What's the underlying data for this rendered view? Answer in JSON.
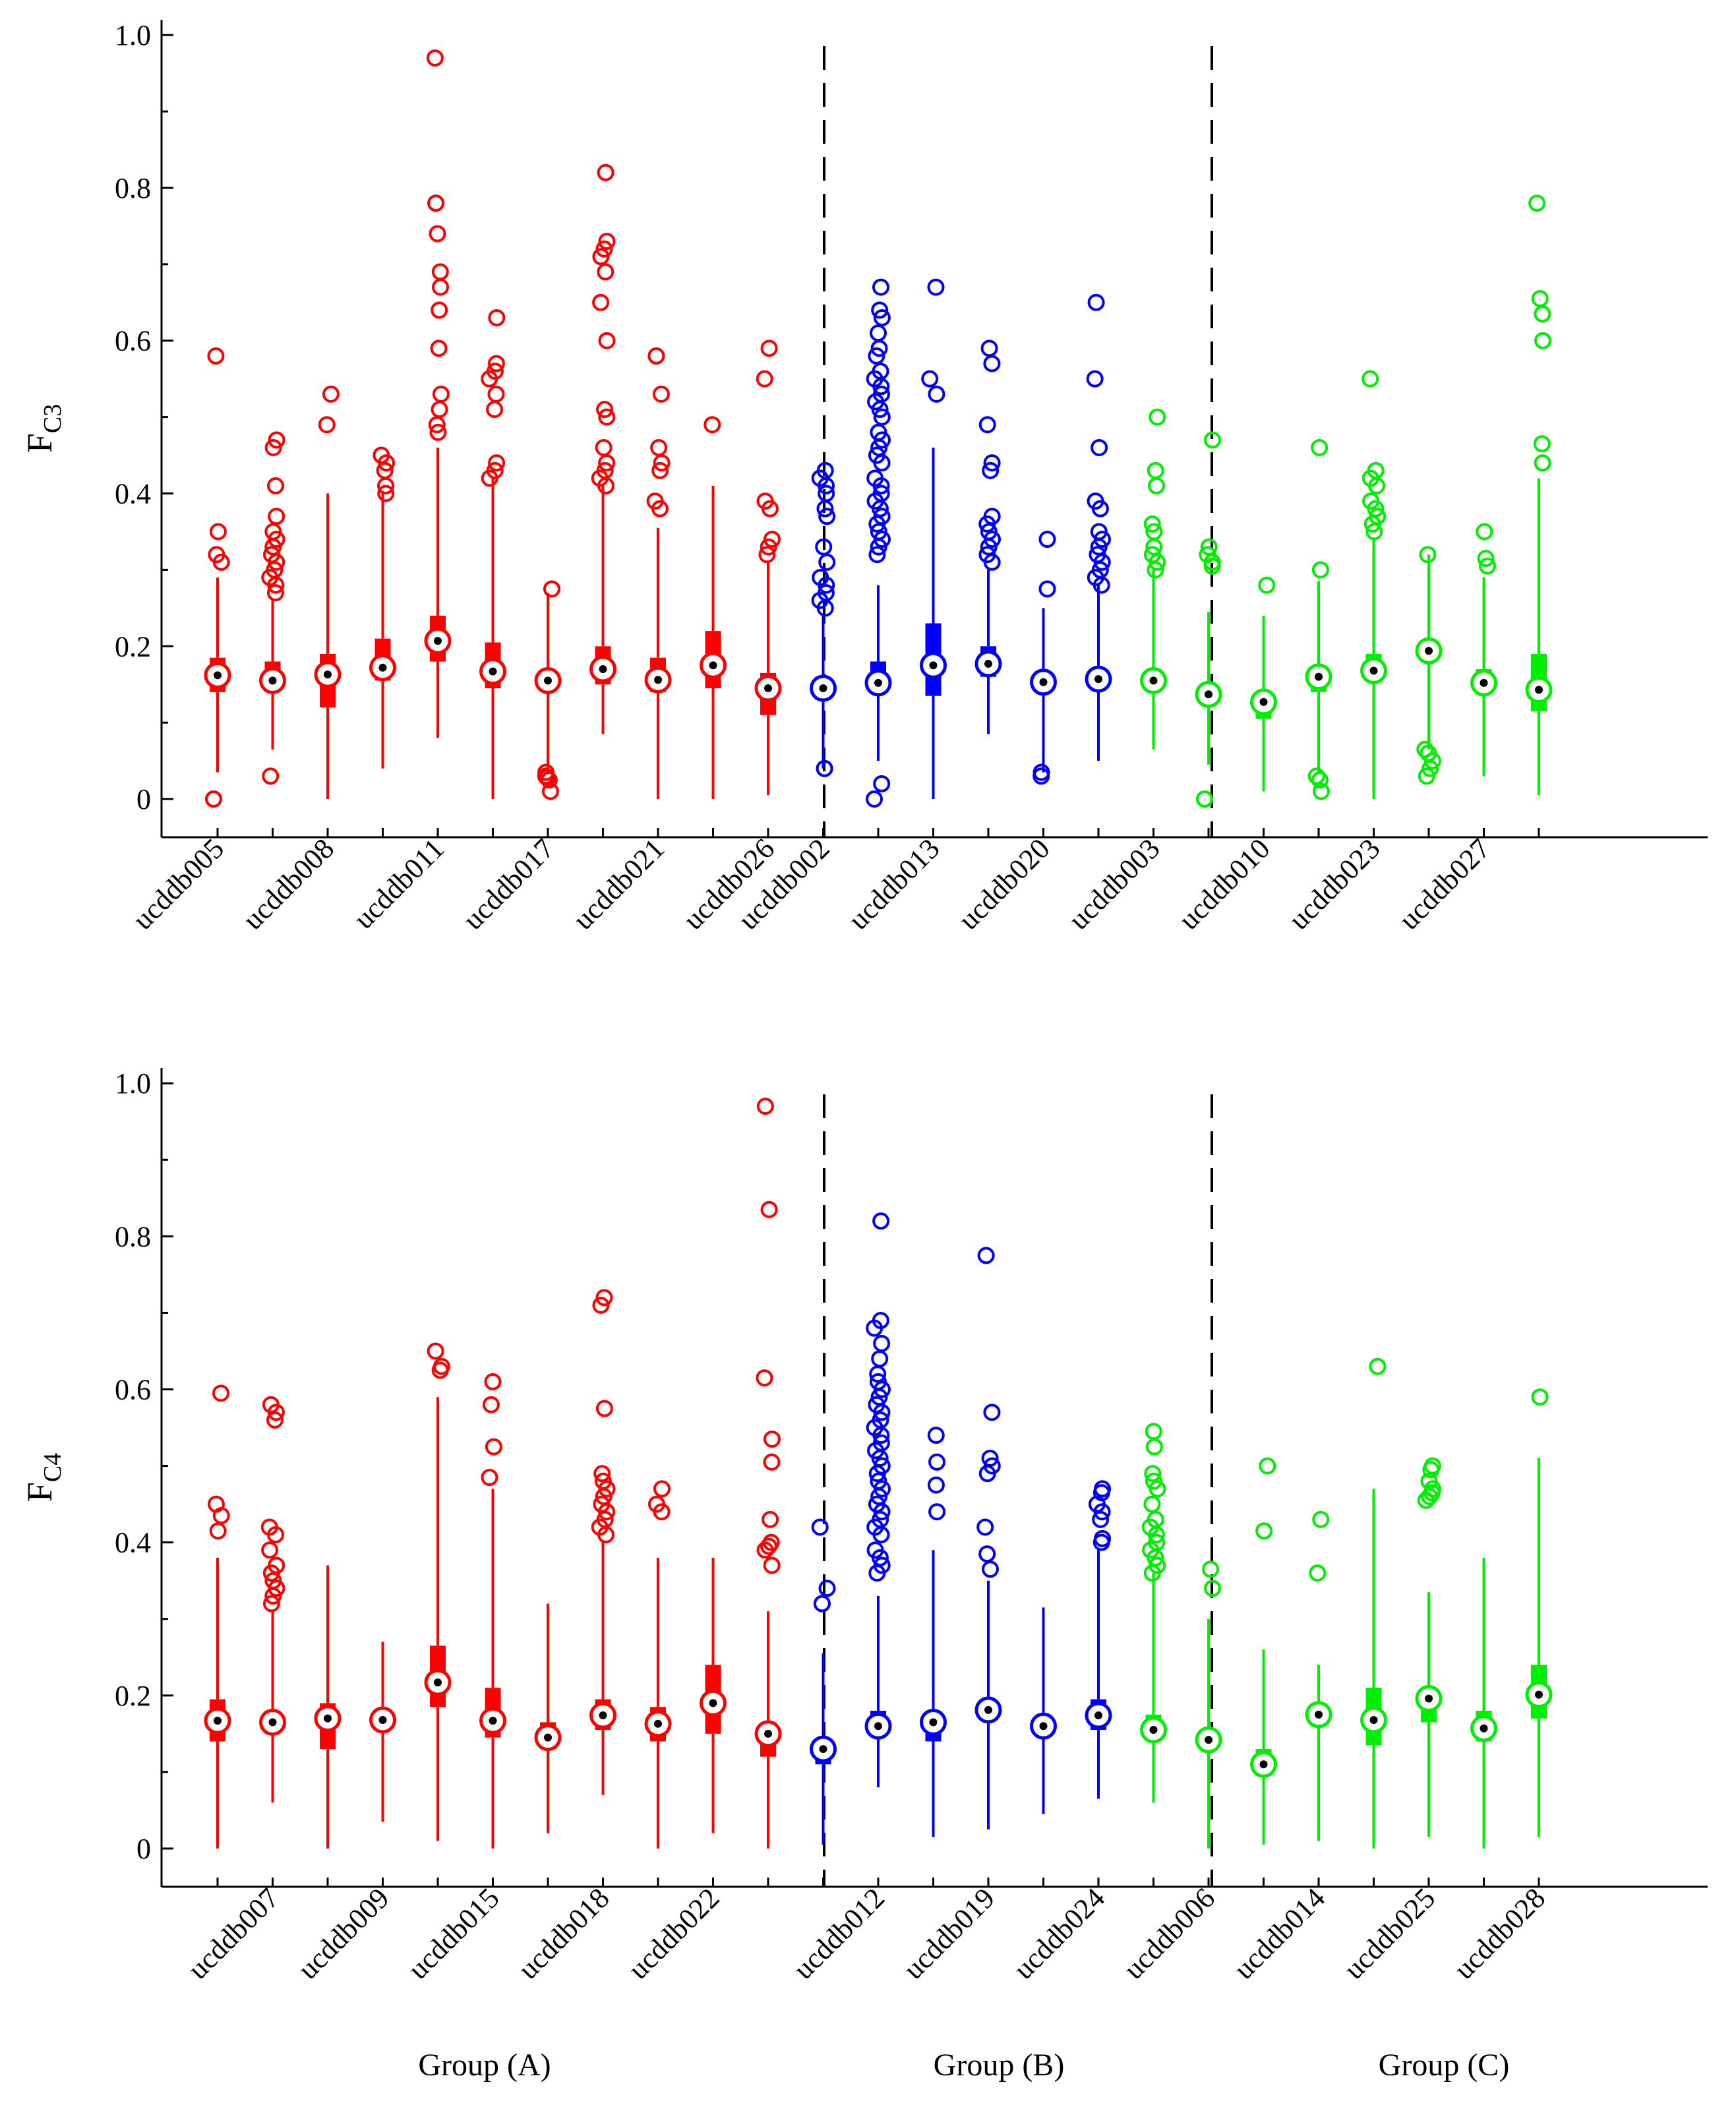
{
  "colors": {
    "A": "#ff0000",
    "B": "#0000ff",
    "C": "#00ee00"
  },
  "group_labels": [
    "Group (A)",
    "Group (B)",
    "Group (C)"
  ],
  "chart_data": [
    {
      "type": "boxplot",
      "ylabel_main": "F",
      "ylabel_sub": "C3",
      "ylim": [
        -0.05,
        1.02
      ],
      "yticks": [
        0,
        0.2,
        0.4,
        0.6,
        0.8,
        1.0
      ],
      "ytick_labels": [
        "0",
        "0.2",
        "0.4",
        "0.6",
        "0.8",
        "1.0"
      ],
      "separators_after": [
        11,
        20
      ],
      "series": [
        {
          "name": "ucddb005",
          "group": "A",
          "median": 0.162,
          "q1": 0.14,
          "q3": 0.185,
          "wlo": 0.035,
          "whi": 0.29,
          "outliers": [
            0.58,
            0.35,
            0.32,
            0.31,
            0.0,
            0.0
          ]
        },
        {
          "name": "",
          "group": "A",
          "median": 0.155,
          "q1": 0.14,
          "q3": 0.18,
          "wlo": 0.065,
          "whi": 0.26,
          "outliers": [
            0.47,
            0.46,
            0.41,
            0.37,
            0.35,
            0.34,
            0.33,
            0.32,
            0.31,
            0.3,
            0.29,
            0.28,
            0.27,
            0.03
          ]
        },
        {
          "name": "ucddb008",
          "group": "A",
          "median": 0.163,
          "q1": 0.12,
          "q3": 0.19,
          "wlo": 0.0,
          "whi": 0.4,
          "outliers": [
            0.53,
            0.49
          ]
        },
        {
          "name": "",
          "group": "A",
          "median": 0.172,
          "q1": 0.155,
          "q3": 0.21,
          "wlo": 0.04,
          "whi": 0.4,
          "outliers": [
            0.45,
            0.44,
            0.43,
            0.41,
            0.4
          ]
        },
        {
          "name": "ucddb011",
          "group": "A",
          "median": 0.207,
          "q1": 0.18,
          "q3": 0.24,
          "wlo": 0.08,
          "whi": 0.46,
          "outliers": [
            0.97,
            0.78,
            0.78,
            0.74,
            0.69,
            0.67,
            0.64,
            0.59,
            0.53,
            0.51,
            0.49,
            0.48
          ]
        },
        {
          "name": "",
          "group": "A",
          "median": 0.167,
          "q1": 0.145,
          "q3": 0.205,
          "wlo": 0.0,
          "whi": 0.42,
          "outliers": [
            0.63,
            0.57,
            0.56,
            0.55,
            0.53,
            0.51,
            0.44,
            0.43,
            0.42
          ]
        },
        {
          "name": "ucddb017",
          "group": "A",
          "median": 0.155,
          "q1": 0.15,
          "q3": 0.16,
          "wlo": 0.04,
          "whi": 0.27,
          "outliers": [
            0.275,
            0.035,
            0.03,
            0.028,
            0.025,
            0.01
          ]
        },
        {
          "name": "",
          "group": "A",
          "median": 0.17,
          "q1": 0.15,
          "q3": 0.2,
          "wlo": 0.085,
          "whi": 0.41,
          "outliers": [
            0.82,
            0.73,
            0.72,
            0.71,
            0.69,
            0.65,
            0.6,
            0.51,
            0.5,
            0.46,
            0.44,
            0.43,
            0.42,
            0.41
          ]
        },
        {
          "name": "ucddb021",
          "group": "A",
          "median": 0.156,
          "q1": 0.14,
          "q3": 0.185,
          "wlo": 0.0,
          "whi": 0.355,
          "outliers": [
            0.58,
            0.58,
            0.53,
            0.46,
            0.44,
            0.43,
            0.39,
            0.38
          ]
        },
        {
          "name": "",
          "group": "A",
          "median": 0.175,
          "q1": 0.145,
          "q3": 0.22,
          "wlo": 0.0,
          "whi": 0.41,
          "outliers": [
            0.49
          ]
        },
        {
          "name": "ucddb026",
          "group": "A",
          "median": 0.145,
          "q1": 0.11,
          "q3": 0.165,
          "wlo": 0.005,
          "whi": 0.31,
          "outliers": [
            0.59,
            0.55,
            0.39,
            0.38,
            0.34,
            0.33,
            0.32
          ]
        },
        {
          "name": "ucddb002",
          "group": "B",
          "median": 0.145,
          "q1": 0.13,
          "q3": 0.16,
          "wlo": 0.04,
          "whi": 0.24,
          "outliers": [
            0.43,
            0.42,
            0.41,
            0.4,
            0.38,
            0.37,
            0.33,
            0.31,
            0.29,
            0.28,
            0.27,
            0.26,
            0.25,
            0.04,
            0.04
          ]
        },
        {
          "name": "",
          "group": "B",
          "median": 0.152,
          "q1": 0.14,
          "q3": 0.18,
          "wlo": 0.05,
          "whi": 0.28,
          "outliers": [
            0.67,
            0.64,
            0.63,
            0.61,
            0.59,
            0.58,
            0.56,
            0.55,
            0.54,
            0.53,
            0.52,
            0.51,
            0.5,
            0.48,
            0.47,
            0.46,
            0.45,
            0.44,
            0.42,
            0.41,
            0.4,
            0.39,
            0.38,
            0.37,
            0.36,
            0.35,
            0.34,
            0.33,
            0.32,
            0.02,
            0.0
          ]
        },
        {
          "name": "ucddb013",
          "group": "B",
          "median": 0.175,
          "q1": 0.135,
          "q3": 0.23,
          "wlo": 0.0,
          "whi": 0.46,
          "outliers": [
            0.67,
            0.55,
            0.53
          ]
        },
        {
          "name": "",
          "group": "B",
          "median": 0.177,
          "q1": 0.16,
          "q3": 0.2,
          "wlo": 0.085,
          "whi": 0.3,
          "outliers": [
            0.59,
            0.57,
            0.49,
            0.44,
            0.43,
            0.37,
            0.36,
            0.35,
            0.34,
            0.33,
            0.32,
            0.31
          ]
        },
        {
          "name": "ucddb020",
          "group": "B",
          "median": 0.153,
          "q1": 0.145,
          "q3": 0.165,
          "wlo": 0.035,
          "whi": 0.25,
          "outliers": [
            0.34,
            0.275,
            0.035,
            0.03
          ]
        },
        {
          "name": "",
          "group": "B",
          "median": 0.157,
          "q1": 0.145,
          "q3": 0.165,
          "wlo": 0.05,
          "whi": 0.28,
          "outliers": [
            0.65,
            0.55,
            0.46,
            0.39,
            0.38,
            0.35,
            0.34,
            0.33,
            0.32,
            0.31,
            0.3,
            0.29,
            0.28
          ]
        },
        {
          "name": "ucddb003",
          "group": "C",
          "median": 0.155,
          "q1": 0.14,
          "q3": 0.17,
          "wlo": 0.065,
          "whi": 0.3,
          "outliers": [
            0.5,
            0.43,
            0.41,
            0.36,
            0.35,
            0.33,
            0.32,
            0.31,
            0.3
          ]
        },
        {
          "name": "",
          "group": "C",
          "median": 0.137,
          "q1": 0.125,
          "q3": 0.145,
          "wlo": 0.045,
          "whi": 0.245,
          "outliers": [
            0.47,
            0.33,
            0.32,
            0.31,
            0.305,
            0.0,
            0.0,
            0.0
          ]
        },
        {
          "name": "ucddb010",
          "group": "C",
          "median": 0.127,
          "q1": 0.105,
          "q3": 0.14,
          "wlo": 0.01,
          "whi": 0.24,
          "outliers": [
            0.28
          ]
        },
        {
          "name": "",
          "group": "C",
          "median": 0.16,
          "q1": 0.14,
          "q3": 0.17,
          "wlo": 0.035,
          "whi": 0.285,
          "outliers": [
            0.46,
            0.3,
            0.03,
            0.025,
            0.01
          ]
        },
        {
          "name": "ucddb023",
          "group": "C",
          "median": 0.168,
          "q1": 0.155,
          "q3": 0.19,
          "wlo": 0.0,
          "whi": 0.34,
          "outliers": [
            0.55,
            0.43,
            0.42,
            0.41,
            0.39,
            0.38,
            0.37,
            0.36,
            0.35
          ]
        },
        {
          "name": "",
          "group": "C",
          "median": 0.194,
          "q1": 0.19,
          "q3": 0.2,
          "wlo": 0.065,
          "whi": 0.32,
          "outliers": [
            0.32,
            0.065,
            0.06,
            0.05,
            0.04,
            0.03
          ]
        },
        {
          "name": "ucddb027",
          "group": "C",
          "median": 0.152,
          "q1": 0.14,
          "q3": 0.17,
          "wlo": 0.03,
          "whi": 0.29,
          "outliers": [
            0.35,
            0.315,
            0.305
          ]
        },
        {
          "name": "",
          "group": "C",
          "median": 0.143,
          "q1": 0.115,
          "q3": 0.19,
          "wlo": 0.005,
          "whi": 0.42,
          "outliers": [
            0.78,
            0.655,
            0.635,
            0.6,
            0.465,
            0.44
          ]
        }
      ]
    },
    {
      "type": "boxplot",
      "ylabel_main": "F",
      "ylabel_sub": "C4",
      "ylim": [
        -0.05,
        1.02
      ],
      "yticks": [
        0,
        0.2,
        0.4,
        0.6,
        0.8,
        1.0
      ],
      "ytick_labels": [
        "0",
        "0.2",
        "0.4",
        "0.6",
        "0.8",
        "1.0"
      ],
      "separators_after": [
        11,
        18
      ],
      "series": [
        {
          "name": "",
          "group": "A",
          "median": 0.167,
          "q1": 0.14,
          "q3": 0.195,
          "wlo": 0.0,
          "whi": 0.38,
          "outliers": [
            0.595,
            0.45,
            0.435,
            0.415
          ]
        },
        {
          "name": "ucddb007",
          "group": "A",
          "median": 0.165,
          "q1": 0.15,
          "q3": 0.18,
          "wlo": 0.06,
          "whi": 0.31,
          "outliers": [
            0.58,
            0.57,
            0.56,
            0.42,
            0.41,
            0.39,
            0.37,
            0.36,
            0.35,
            0.34,
            0.33,
            0.32
          ]
        },
        {
          "name": "",
          "group": "A",
          "median": 0.17,
          "q1": 0.13,
          "q3": 0.19,
          "wlo": 0.0,
          "whi": 0.37,
          "outliers": []
        },
        {
          "name": "ucddb009",
          "group": "A",
          "median": 0.168,
          "q1": 0.16,
          "q3": 0.18,
          "wlo": 0.035,
          "whi": 0.27,
          "outliers": []
        },
        {
          "name": "",
          "group": "A",
          "median": 0.217,
          "q1": 0.185,
          "q3": 0.265,
          "wlo": 0.01,
          "whi": 0.59,
          "outliers": [
            0.65,
            0.63,
            0.625
          ]
        },
        {
          "name": "ucddb015",
          "group": "A",
          "median": 0.167,
          "q1": 0.145,
          "q3": 0.21,
          "wlo": 0.0,
          "whi": 0.47,
          "outliers": [
            0.61,
            0.58,
            0.525,
            0.485
          ]
        },
        {
          "name": "",
          "group": "A",
          "median": 0.145,
          "q1": 0.13,
          "q3": 0.165,
          "wlo": 0.02,
          "whi": 0.32,
          "outliers": []
        },
        {
          "name": "ucddb018",
          "group": "A",
          "median": 0.174,
          "q1": 0.155,
          "q3": 0.195,
          "wlo": 0.07,
          "whi": 0.4,
          "outliers": [
            0.72,
            0.71,
            0.575,
            0.49,
            0.48,
            0.47,
            0.46,
            0.45,
            0.44,
            0.43,
            0.42,
            0.41
          ]
        },
        {
          "name": "",
          "group": "A",
          "median": 0.163,
          "q1": 0.14,
          "q3": 0.185,
          "wlo": 0.0,
          "whi": 0.38,
          "outliers": [
            0.47,
            0.45,
            0.44
          ]
        },
        {
          "name": "ucddb022",
          "group": "A",
          "median": 0.19,
          "q1": 0.15,
          "q3": 0.24,
          "wlo": 0.02,
          "whi": 0.38,
          "outliers": []
        },
        {
          "name": "",
          "group": "A",
          "median": 0.15,
          "q1": 0.12,
          "q3": 0.16,
          "wlo": 0.0,
          "whi": 0.31,
          "outliers": [
            0.97,
            0.835,
            0.615,
            0.535,
            0.505,
            0.43,
            0.4,
            0.395,
            0.39,
            0.37
          ]
        },
        {
          "name": "",
          "group": "B",
          "median": 0.13,
          "q1": 0.11,
          "q3": 0.14,
          "wlo": 0.005,
          "whi": 0.255,
          "outliers": [
            0.42,
            0.34,
            0.32,
            0.32
          ]
        },
        {
          "name": "ucddb012",
          "group": "B",
          "median": 0.16,
          "q1": 0.15,
          "q3": 0.18,
          "wlo": 0.08,
          "whi": 0.33,
          "outliers": [
            0.82,
            0.69,
            0.68,
            0.66,
            0.64,
            0.62,
            0.61,
            0.6,
            0.59,
            0.58,
            0.57,
            0.56,
            0.55,
            0.54,
            0.53,
            0.52,
            0.51,
            0.5,
            0.49,
            0.48,
            0.47,
            0.46,
            0.45,
            0.44,
            0.43,
            0.42,
            0.41,
            0.39,
            0.38,
            0.37,
            0.36
          ]
        },
        {
          "name": "",
          "group": "B",
          "median": 0.165,
          "q1": 0.14,
          "q3": 0.18,
          "wlo": 0.015,
          "whi": 0.39,
          "outliers": [
            0.54,
            0.505,
            0.475,
            0.44
          ]
        },
        {
          "name": "ucddb019",
          "group": "B",
          "median": 0.181,
          "q1": 0.17,
          "q3": 0.19,
          "wlo": 0.025,
          "whi": 0.35,
          "outliers": [
            0.775,
            0.57,
            0.51,
            0.5,
            0.49,
            0.42,
            0.385,
            0.365
          ]
        },
        {
          "name": "",
          "group": "B",
          "median": 0.16,
          "q1": 0.15,
          "q3": 0.175,
          "wlo": 0.045,
          "whi": 0.315,
          "outliers": []
        },
        {
          "name": "ucddb024",
          "group": "B",
          "median": 0.174,
          "q1": 0.155,
          "q3": 0.195,
          "wlo": 0.065,
          "whi": 0.39,
          "outliers": [
            0.47,
            0.465,
            0.45,
            0.44,
            0.43,
            0.405,
            0.4
          ]
        },
        {
          "name": "",
          "group": "C",
          "median": 0.155,
          "q1": 0.14,
          "q3": 0.175,
          "wlo": 0.06,
          "whi": 0.36,
          "outliers": [
            0.545,
            0.525,
            0.49,
            0.48,
            0.47,
            0.45,
            0.43,
            0.42,
            0.41,
            0.4,
            0.39,
            0.38,
            0.37,
            0.36
          ]
        },
        {
          "name": "ucddb006",
          "group": "C",
          "median": 0.142,
          "q1": 0.13,
          "q3": 0.15,
          "wlo": 0.0,
          "whi": 0.3,
          "outliers": [
            0.365,
            0.34
          ]
        },
        {
          "name": "",
          "group": "C",
          "median": 0.11,
          "q1": 0.095,
          "q3": 0.13,
          "wlo": 0.005,
          "whi": 0.26,
          "outliers": [
            0.5,
            0.415
          ]
        },
        {
          "name": "ucddb014",
          "group": "C",
          "median": 0.175,
          "q1": 0.16,
          "q3": 0.19,
          "wlo": 0.01,
          "whi": 0.24,
          "outliers": [
            0.43,
            0.36
          ]
        },
        {
          "name": "",
          "group": "C",
          "median": 0.168,
          "q1": 0.135,
          "q3": 0.21,
          "wlo": 0.0,
          "whi": 0.47,
          "outliers": [
            0.63
          ]
        },
        {
          "name": "ucddb025",
          "group": "C",
          "median": 0.196,
          "q1": 0.165,
          "q3": 0.21,
          "wlo": 0.015,
          "whi": 0.335,
          "outliers": [
            0.5,
            0.495,
            0.48,
            0.47,
            0.465,
            0.46,
            0.455
          ]
        },
        {
          "name": "",
          "group": "C",
          "median": 0.157,
          "q1": 0.14,
          "q3": 0.18,
          "wlo": 0.0,
          "whi": 0.38,
          "outliers": []
        },
        {
          "name": "ucddb028",
          "group": "C",
          "median": 0.201,
          "q1": 0.17,
          "q3": 0.24,
          "wlo": 0.015,
          "whi": 0.51,
          "outliers": [
            0.59
          ]
        }
      ]
    }
  ]
}
